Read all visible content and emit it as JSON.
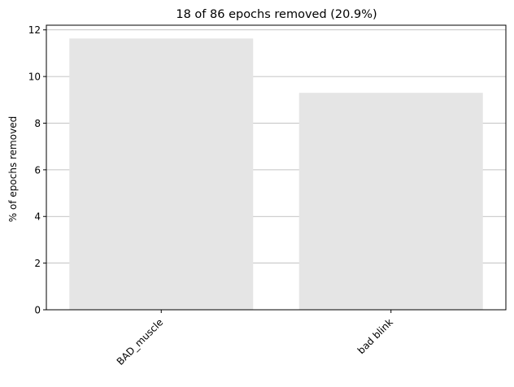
{
  "chart_data": {
    "type": "bar",
    "title": "18 of 86 epochs removed (20.9%)",
    "xlabel": "",
    "ylabel": "% of epochs removed",
    "categories": [
      "BAD_muscle",
      "bad blink"
    ],
    "values": [
      11.63,
      9.3
    ],
    "ylim": [
      0,
      12.2
    ],
    "yticks": [
      0,
      2,
      4,
      6,
      8,
      10,
      12
    ],
    "grid": "horizontal",
    "bar_color": "#e5e5e5",
    "grid_color": "#b0b0b0"
  }
}
